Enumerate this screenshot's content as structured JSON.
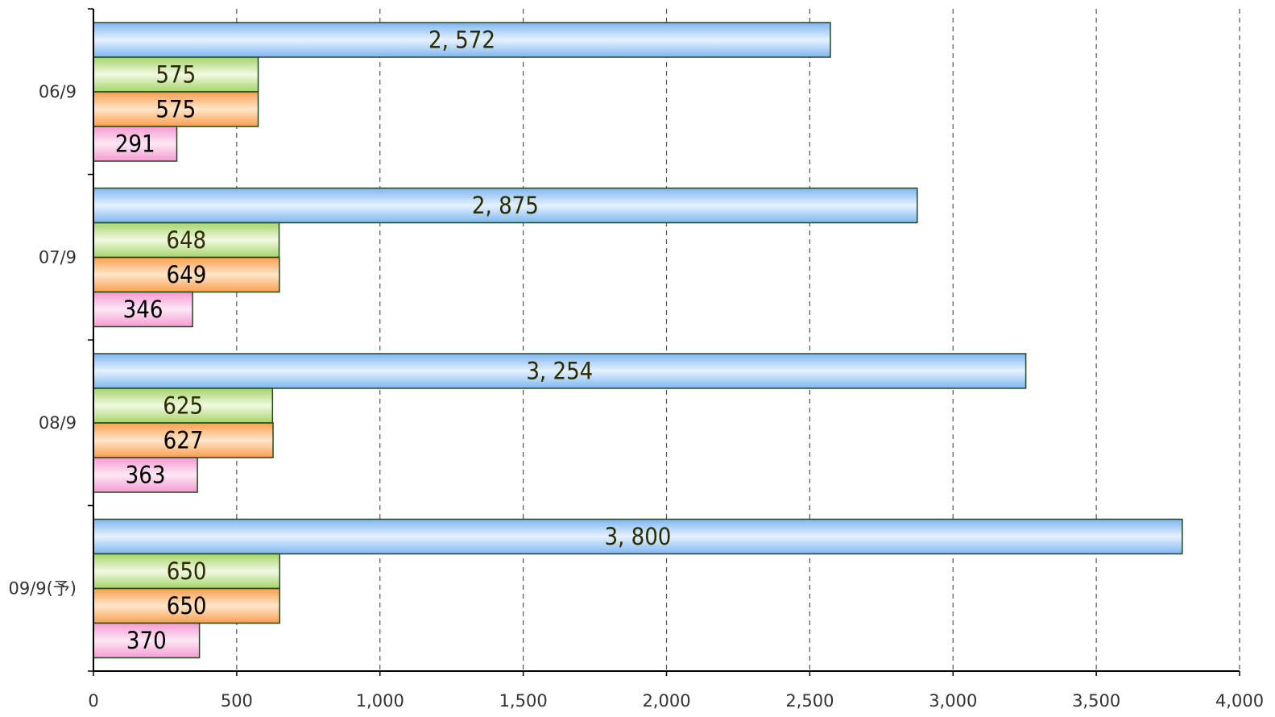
{
  "chart_data": {
    "type": "bar",
    "orientation": "horizontal",
    "categories": [
      "06/9",
      "07/9",
      "08/9",
      "09/9(予)"
    ],
    "series": [
      {
        "values": [
          2572,
          2875,
          3254,
          3800
        ],
        "labels": [
          "2, 572",
          "2, 875",
          "3, 254",
          "3, 800"
        ],
        "color": "#9fcbf6",
        "label_color": "#2b2b00"
      },
      {
        "values": [
          575,
          648,
          625,
          650
        ],
        "labels": [
          "575",
          "648",
          "625",
          "650"
        ],
        "color": "#bfe08a",
        "label_color": "#2b2b00"
      },
      {
        "values": [
          575,
          649,
          627,
          650
        ],
        "labels": [
          "575",
          "649",
          "627",
          "650"
        ],
        "color": "#fdb978",
        "label_color": "#000000"
      },
      {
        "values": [
          291,
          346,
          363,
          370
        ],
        "labels": [
          "291",
          "346",
          "363",
          "370"
        ],
        "color": "#f9b2de",
        "label_color": "#000000"
      }
    ],
    "xlim": [
      0,
      4000
    ],
    "xticks": [
      0,
      500,
      1000,
      1500,
      2000,
      2500,
      3000,
      3500,
      4000
    ],
    "xtick_labels": [
      "0",
      "500",
      "1,000",
      "1,500",
      "2,000",
      "2,500",
      "3,000",
      "3,500",
      "4,000"
    ],
    "grid": "vertical-dashed",
    "legend": "none"
  }
}
